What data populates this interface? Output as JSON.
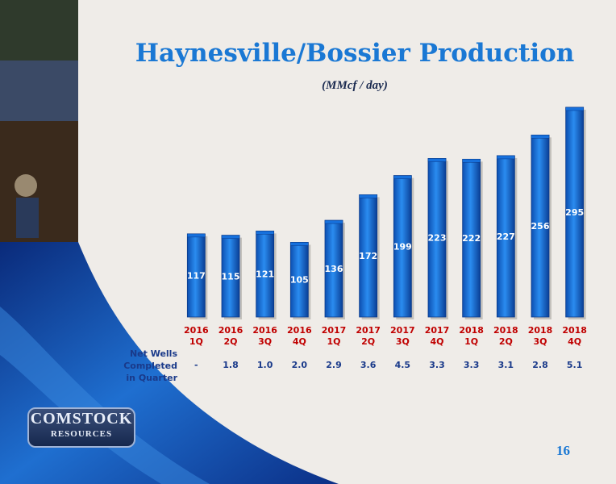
{
  "chart_data": {
    "type": "bar",
    "title": "Haynesville/Bossier Production",
    "subtitle": "(MMcf / day)",
    "categories": [
      "2016 1Q",
      "2016 2Q",
      "2016 3Q",
      "2016 4Q",
      "2017 1Q",
      "2017 2Q",
      "2017 3Q",
      "2017 4Q",
      "2018 1Q",
      "2018 2Q",
      "2018 3Q",
      "2018 4Q"
    ],
    "values": [
      117,
      115,
      121,
      105,
      136,
      172,
      199,
      223,
      222,
      227,
      256,
      295
    ],
    "color": "#1670dc",
    "net_wells": {
      "label": "Net Wells Completed in Quarter",
      "values": [
        "-",
        "1.8",
        "1.0",
        "2.0",
        "2.9",
        "3.6",
        "4.5",
        "3.3",
        "3.3",
        "3.1",
        "2.8",
        "5.1"
      ]
    }
  },
  "logo": {
    "line1": "COMSTOCK",
    "line2": "RESOURCES"
  },
  "page_number": "16"
}
